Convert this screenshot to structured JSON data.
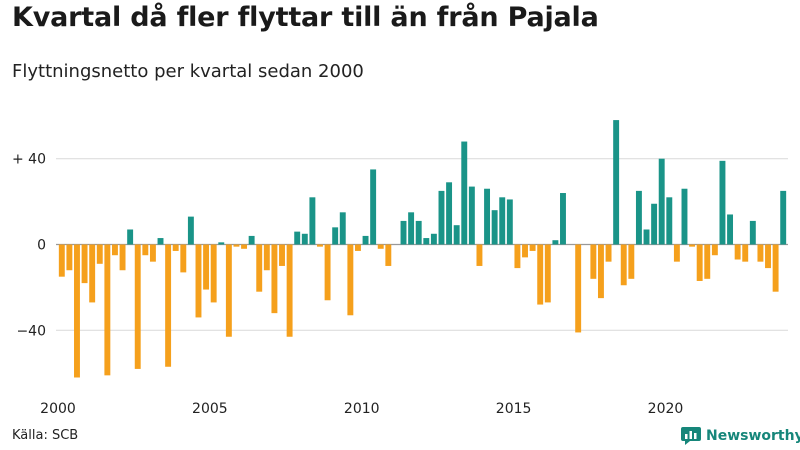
{
  "header": {
    "title": "Kvartal då fler flyttar till än från Pajala",
    "subtitle": "Flyttningsnetto per kvartal sedan 2000"
  },
  "footer": {
    "source": "Källa: SCB",
    "brand": "Newsworthy",
    "brand_icon": "bar-chart-logo-icon"
  },
  "colors": {
    "positive": "#1a9488",
    "negative": "#f5a01c",
    "grid": "#d9d9d9",
    "zero_line": "#999999"
  },
  "chart_data": {
    "type": "bar",
    "title": "Kvartal då fler flyttar till än från Pajala",
    "subtitle": "Flyttningsnetto per kvartal sedan 2000",
    "xlabel": "",
    "ylabel": "",
    "x_start": "2000-Q1",
    "ylim": [
      -66,
      62
    ],
    "y_ticks": [
      {
        "value": 40,
        "label": "+ 40"
      },
      {
        "value": 0,
        "label": "0"
      },
      {
        "value": -40,
        "label": "−40"
      }
    ],
    "x_ticks": [
      {
        "label": "2000",
        "year": 2000
      },
      {
        "label": "2005",
        "year": 2005
      },
      {
        "label": "2010",
        "year": 2010
      },
      {
        "label": "2015",
        "year": 2015
      },
      {
        "label": "2020",
        "year": 2020
      }
    ],
    "grid": true,
    "values": [
      -15,
      -12,
      -62,
      -18,
      -27,
      -9,
      -61,
      -5,
      -12,
      7,
      -58,
      -5,
      -8,
      3,
      -57,
      -3,
      -13,
      13,
      -34,
      -21,
      -27,
      1,
      -43,
      -1,
      -2,
      4,
      -22,
      -12,
      -32,
      -10,
      -43,
      6,
      5,
      22,
      -1,
      -26,
      8,
      15,
      -33,
      -3,
      4,
      35,
      -2,
      -10,
      0,
      11,
      15,
      11,
      3,
      5,
      25,
      29,
      9,
      48,
      27,
      -10,
      26,
      16,
      22,
      21,
      -11,
      -6,
      -3,
      -28,
      -27,
      2,
      24,
      0,
      -41,
      0,
      -16,
      -25,
      -8,
      58,
      -19,
      -16,
      25,
      7,
      19,
      40,
      22,
      -8,
      26,
      -1,
      -17,
      -16,
      -5,
      39,
      14,
      -7,
      -8,
      11,
      -8,
      -11,
      -22,
      25
    ]
  }
}
